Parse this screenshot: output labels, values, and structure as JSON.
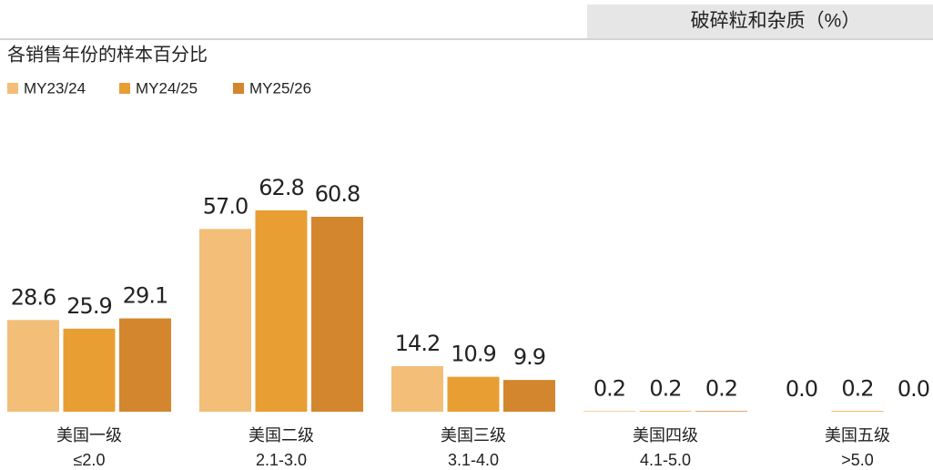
{
  "chart_data": {
    "type": "bar",
    "title": "破碎粒和杂质（%）",
    "subtitle": "各销售年份的样本百分比",
    "categories": [
      [
        "美国一级",
        "≤2.0"
      ],
      [
        "美国二级",
        "2.1-3.0"
      ],
      [
        "美国三级",
        "3.1-4.0"
      ],
      [
        "美国四级",
        "4.1-5.0"
      ],
      [
        "美国五级",
        ">5.0"
      ]
    ],
    "series": [
      {
        "name": "MY23/24",
        "color": "#f2be78",
        "values": [
          28.6,
          57,
          14.2,
          0.2,
          0
        ],
        "value_labels": [
          "28.6",
          "57.0",
          "14.2",
          "0.2",
          "0.0"
        ]
      },
      {
        "name": "MY24/25",
        "color": "#e99e34",
        "values": [
          25.9,
          62.8,
          10.9,
          0.2,
          0.2
        ],
        "value_labels": [
          "25.9",
          "62.8",
          "10.9",
          "0.2",
          "0.2"
        ]
      },
      {
        "name": "MY25/26",
        "color": "#d3862e",
        "values": [
          29.1,
          60.8,
          9.9,
          0.2,
          0
        ],
        "value_labels": [
          "29.1",
          "60.8",
          "9.9",
          "0.2",
          "0.0"
        ]
      }
    ]
  }
}
